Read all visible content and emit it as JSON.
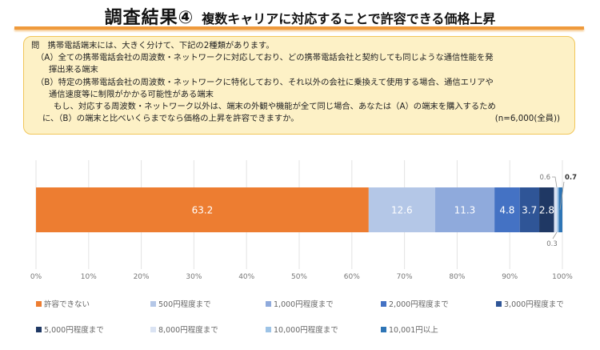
{
  "header": {
    "title_main": "調査結果④",
    "title_sub": "複数キャリアに対応することで許容できる価格上昇"
  },
  "question": {
    "lines": [
      "問　携帯電話端末には、大きく分けて、下記の2種類があります。",
      "（A）全ての携帯電話会社の周波数・ネットワークに対応しており、どの携帯電話会社と契約しても同じような通信性能を発",
      "揮出来る端末",
      "（B）特定の携帯電話会社の周波数・ネットワークに特化しており、それ以外の会社に乗換えて使用する場合、通信エリアや",
      "通信速度等に制限がかかる可能性がある端末",
      "もし、対応する周波数・ネットワーク以外は、端末の外観や機能が全て同じ場合、あなたは（A）の端末を購入するため",
      "に、（B）の端末と比べいくらまでなら価格の上昇を許容できますか。"
    ],
    "sample": "(n=6,000(全員))"
  },
  "chart_data": {
    "type": "bar",
    "orientation": "horizontal",
    "stacked": true,
    "title": "",
    "xlabel": "",
    "ylabel": "",
    "xlim": [
      0,
      100
    ],
    "x_ticks": [
      "0%",
      "10%",
      "20%",
      "30%",
      "40%",
      "50%",
      "60%",
      "70%",
      "80%",
      "90%",
      "100%"
    ],
    "grid": true,
    "legend_position": "bottom",
    "series": [
      {
        "name": "許容できない",
        "value": 63.2,
        "label": "63.2",
        "color": "#ed7d31"
      },
      {
        "name": "500円程度まで",
        "value": 12.6,
        "label": "12.6",
        "color": "#b4c7e7"
      },
      {
        "name": "1,000円程度まで",
        "value": 11.3,
        "label": "11.3",
        "color": "#8faadc"
      },
      {
        "name": "2,000円程度まで",
        "value": 4.8,
        "label": "4.8",
        "color": "#4472c4"
      },
      {
        "name": "3,000円程度まで",
        "value": 3.7,
        "label": "3.7",
        "color": "#2f5597"
      },
      {
        "name": "5,000円程度まで",
        "value": 2.8,
        "label": "2.8",
        "color": "#1f3864"
      },
      {
        "name": "8,000円程度まで",
        "value": 0.6,
        "label": "0.6",
        "color": "#dae3f3"
      },
      {
        "name": "10,000円程度まで",
        "value": 0.3,
        "label": "0.3",
        "color": "#9dc3e6"
      },
      {
        "name": "10,001円以上",
        "value": 0.7,
        "label": "0.7",
        "color": "#2e75b6"
      }
    ]
  }
}
